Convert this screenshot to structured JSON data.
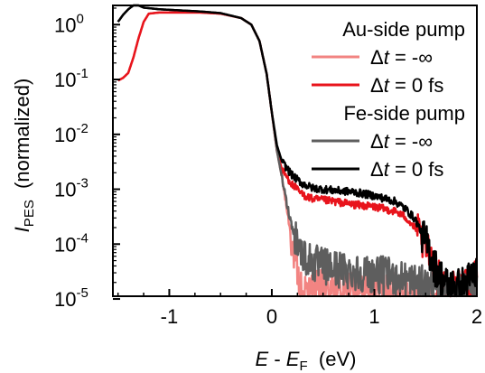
{
  "chart_data": {
    "type": "line",
    "title": "",
    "xlabel": {
      "main": "E",
      "sep": " - ",
      "sub_main": "E",
      "sub": "F",
      "unit": "(eV)"
    },
    "ylabel": {
      "main": "I",
      "sub": "PES",
      "unit": "(normalized)"
    },
    "x_range": [
      -1.55,
      2.0
    ],
    "y_range_log10": [
      -4.95,
      0.35
    ],
    "y_scale": "log",
    "x_ticks": [
      -1,
      0,
      1,
      2
    ],
    "y_ticks": [
      {
        "base": "10",
        "exp": "0",
        "log": 0
      },
      {
        "base": "10",
        "exp": "-1",
        "log": -1
      },
      {
        "base": "10",
        "exp": "-2",
        "log": -2
      },
      {
        "base": "10",
        "exp": "-3",
        "log": -3
      },
      {
        "base": "10",
        "exp": "-4",
        "log": -4
      },
      {
        "base": "10",
        "exp": "-5",
        "log": -5
      }
    ],
    "grid": false,
    "legend_position": "top-right",
    "legend_groups": [
      {
        "title": "Au-side pump",
        "entries": [
          {
            "prefix": "Δ",
            "italic": "t",
            "suffix": " = -∞",
            "series": 0
          },
          {
            "prefix": "Δ",
            "italic": "t",
            "suffix": " = 0 fs",
            "series": 1
          }
        ]
      },
      {
        "title": "Fe-side pump",
        "entries": [
          {
            "prefix": "Δ",
            "italic": "t",
            "suffix": " = -∞",
            "series": 2
          },
          {
            "prefix": "Δ",
            "italic": "t",
            "suffix": " = 0 fs",
            "series": 3
          }
        ]
      }
    ],
    "series": [
      {
        "color": "#f28482",
        "width": 2.5,
        "points": [
          [
            -1.5,
            -1.02
          ],
          [
            -1.45,
            -0.97
          ],
          [
            -1.4,
            -0.88
          ],
          [
            -1.35,
            -0.6
          ],
          [
            -1.3,
            -0.25
          ],
          [
            -1.25,
            0.05
          ],
          [
            -1.2,
            0.2
          ],
          [
            -1.1,
            0.22
          ],
          [
            -0.9,
            0.22
          ],
          [
            -0.7,
            0.22
          ],
          [
            -0.5,
            0.2
          ],
          [
            -0.3,
            0.12
          ],
          [
            -0.2,
            0.0
          ],
          [
            -0.12,
            -0.3
          ],
          [
            -0.05,
            -0.9
          ],
          [
            0.0,
            -1.6
          ],
          [
            0.05,
            -2.3
          ],
          [
            0.1,
            -2.8
          ],
          [
            0.15,
            -3.4
          ],
          [
            0.2,
            -4.0
          ],
          [
            0.25,
            -4.6
          ],
          [
            0.3,
            -4.9
          ],
          [
            0.5,
            -4.8
          ],
          [
            0.7,
            -4.85
          ],
          [
            0.9,
            -4.8
          ],
          [
            1.1,
            -4.85
          ],
          [
            1.3,
            -4.9
          ],
          [
            1.5,
            -4.95
          ],
          [
            1.7,
            -4.95
          ],
          [
            1.9,
            -4.95
          ],
          [
            2.0,
            -4.95
          ]
        ]
      },
      {
        "color": "#e8141c",
        "width": 2.5,
        "points": [
          [
            -1.5,
            -1.02
          ],
          [
            -1.45,
            -0.97
          ],
          [
            -1.4,
            -0.88
          ],
          [
            -1.35,
            -0.6
          ],
          [
            -1.3,
            -0.25
          ],
          [
            -1.25,
            0.05
          ],
          [
            -1.2,
            0.2
          ],
          [
            -1.1,
            0.22
          ],
          [
            -0.9,
            0.22
          ],
          [
            -0.7,
            0.22
          ],
          [
            -0.5,
            0.2
          ],
          [
            -0.3,
            0.12
          ],
          [
            -0.2,
            0.0
          ],
          [
            -0.12,
            -0.3
          ],
          [
            -0.05,
            -0.9
          ],
          [
            0.0,
            -1.6
          ],
          [
            0.05,
            -2.3
          ],
          [
            0.1,
            -2.65
          ],
          [
            0.2,
            -2.92
          ],
          [
            0.3,
            -3.1
          ],
          [
            0.4,
            -3.18
          ],
          [
            0.6,
            -3.22
          ],
          [
            0.8,
            -3.28
          ],
          [
            1.0,
            -3.32
          ],
          [
            1.2,
            -3.4
          ],
          [
            1.3,
            -3.5
          ],
          [
            1.4,
            -3.72
          ],
          [
            1.5,
            -4.05
          ],
          [
            1.6,
            -4.55
          ],
          [
            1.7,
            -4.85
          ],
          [
            1.8,
            -4.85
          ],
          [
            1.9,
            -4.8
          ],
          [
            2.0,
            -4.6
          ]
        ]
      },
      {
        "color": "#5e5e5e",
        "width": 2.5,
        "points": [
          [
            -1.5,
            0.05
          ],
          [
            -1.45,
            0.18
          ],
          [
            -1.4,
            0.28
          ],
          [
            -1.35,
            0.35
          ],
          [
            -1.3,
            0.35
          ],
          [
            -1.25,
            0.31
          ],
          [
            -1.1,
            0.28
          ],
          [
            -0.9,
            0.26
          ],
          [
            -0.7,
            0.24
          ],
          [
            -0.5,
            0.21
          ],
          [
            -0.3,
            0.12
          ],
          [
            -0.2,
            0.0
          ],
          [
            -0.12,
            -0.3
          ],
          [
            -0.05,
            -0.9
          ],
          [
            0.0,
            -1.6
          ],
          [
            0.05,
            -2.3
          ],
          [
            0.1,
            -2.8
          ],
          [
            0.15,
            -3.3
          ],
          [
            0.2,
            -3.7
          ],
          [
            0.3,
            -4.2
          ],
          [
            0.4,
            -4.35
          ],
          [
            0.5,
            -4.4
          ],
          [
            0.6,
            -4.45
          ],
          [
            0.8,
            -4.5
          ],
          [
            1.0,
            -4.55
          ],
          [
            1.2,
            -4.6
          ],
          [
            1.4,
            -4.7
          ],
          [
            1.6,
            -4.8
          ],
          [
            1.8,
            -4.85
          ],
          [
            2.0,
            -4.85
          ]
        ]
      },
      {
        "color": "#000000",
        "width": 2.5,
        "points": [
          [
            -1.5,
            0.05
          ],
          [
            -1.45,
            0.18
          ],
          [
            -1.4,
            0.28
          ],
          [
            -1.35,
            0.35
          ],
          [
            -1.3,
            0.35
          ],
          [
            -1.25,
            0.31
          ],
          [
            -1.1,
            0.28
          ],
          [
            -0.9,
            0.26
          ],
          [
            -0.7,
            0.24
          ],
          [
            -0.5,
            0.21
          ],
          [
            -0.3,
            0.12
          ],
          [
            -0.2,
            0.0
          ],
          [
            -0.12,
            -0.3
          ],
          [
            -0.05,
            -0.9
          ],
          [
            0.0,
            -1.6
          ],
          [
            0.05,
            -2.2
          ],
          [
            0.1,
            -2.5
          ],
          [
            0.2,
            -2.75
          ],
          [
            0.3,
            -2.9
          ],
          [
            0.4,
            -2.98
          ],
          [
            0.6,
            -3.02
          ],
          [
            0.8,
            -3.05
          ],
          [
            1.0,
            -3.12
          ],
          [
            1.2,
            -3.22
          ],
          [
            1.3,
            -3.35
          ],
          [
            1.4,
            -3.55
          ],
          [
            1.5,
            -3.95
          ],
          [
            1.6,
            -4.45
          ],
          [
            1.7,
            -4.75
          ],
          [
            1.8,
            -4.8
          ],
          [
            1.9,
            -4.7
          ],
          [
            2.0,
            -4.5
          ]
        ]
      }
    ]
  }
}
